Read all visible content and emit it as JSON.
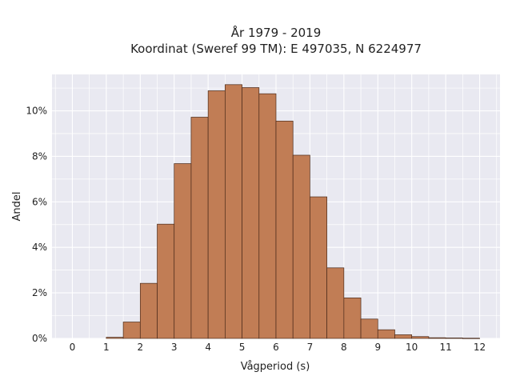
{
  "chart_data": {
    "type": "bar",
    "title_lines": [
      "År 1979 - 2019",
      "Koordinat (Sweref 99 TM): E 497035, N 6224977"
    ],
    "xlabel": "Vågperiod (s)",
    "ylabel": "Andel",
    "bin_width": 0.5,
    "bin_starts": [
      1.0,
      1.5,
      2.0,
      2.5,
      3.0,
      3.5,
      4.0,
      4.5,
      5.0,
      5.5,
      6.0,
      6.5,
      7.0,
      7.5,
      8.0,
      8.5,
      9.0,
      9.5,
      10.0,
      10.5,
      11.0,
      11.5
    ],
    "values": [
      0.05,
      0.72,
      2.42,
      5.02,
      7.68,
      9.72,
      10.88,
      11.15,
      11.02,
      10.75,
      9.55,
      8.05,
      6.22,
      3.1,
      1.78,
      0.85,
      0.38,
      0.16,
      0.08,
      0.03,
      0.02,
      0.01
    ],
    "xlim": [
      -0.6,
      12.6
    ],
    "ylim": [
      0,
      11.6
    ],
    "x_ticks": [
      0,
      1,
      2,
      3,
      4,
      5,
      6,
      7,
      8,
      9,
      10,
      11,
      12
    ],
    "y_ticks": [
      0,
      2,
      4,
      6,
      8,
      10
    ],
    "y_tick_labels": [
      "0%",
      "2%",
      "4%",
      "6%",
      "8%",
      "10%"
    ],
    "grid": true,
    "legend": "none",
    "colors": {
      "bar_fill": "#c17d55",
      "bar_edge": "#4a2a1a",
      "plot_bg": "#e9e9f1",
      "grid": "#ffffff"
    }
  }
}
